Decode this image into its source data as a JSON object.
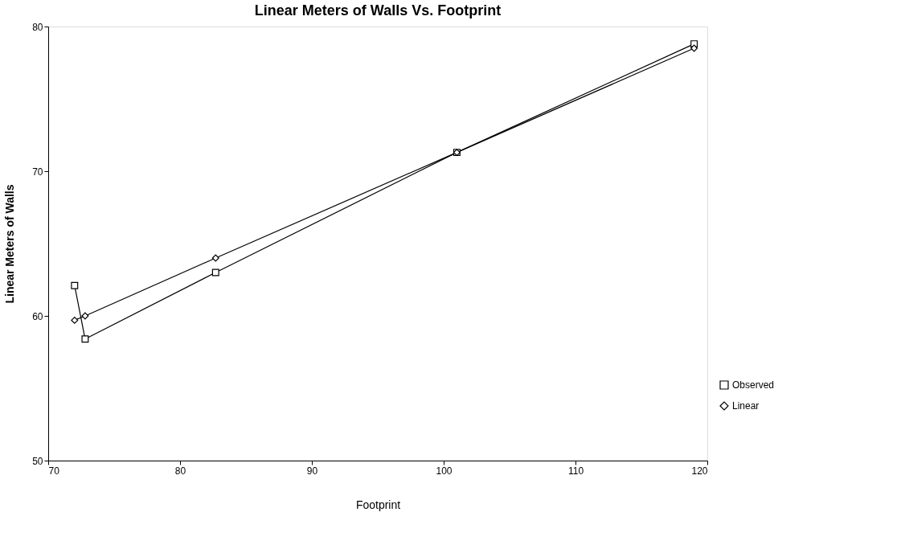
{
  "chart_data": {
    "type": "line",
    "title": "Linear Meters of Walls Vs. Footprint",
    "xlabel": "Footprint",
    "ylabel": "Linear Meters of Walls",
    "xlim": [
      70,
      120
    ],
    "xticks": [
      70,
      80,
      90,
      100,
      110,
      120
    ],
    "ylim": [
      50,
      80
    ],
    "yticks": [
      50,
      60,
      70,
      80
    ],
    "grid": false,
    "legend": "bottom right",
    "line_style": "solid",
    "series": [
      {
        "name": "Observed",
        "color": "#000000",
        "marker": "square",
        "x": [
          72.0,
          72.8,
          82.7,
          101.0,
          119.0
        ],
        "values": [
          62.1,
          58.4,
          63.0,
          71.3,
          78.8
        ]
      },
      {
        "name": "Linear",
        "color": "#000000",
        "marker": "diamond",
        "x": [
          72.0,
          72.8,
          82.7,
          101.0,
          119.0
        ],
        "values": [
          59.7,
          60.0,
          64.0,
          71.3,
          78.5
        ]
      }
    ]
  }
}
